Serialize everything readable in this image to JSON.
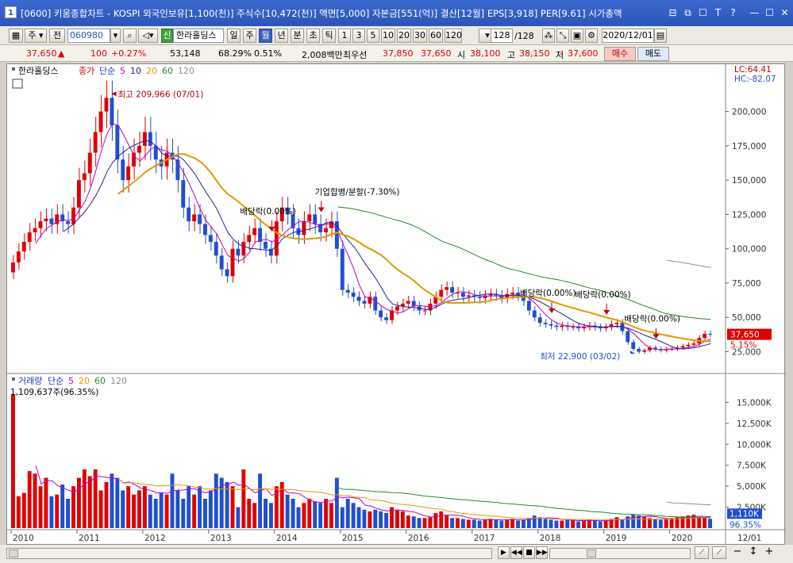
{
  "window": {
    "number": "1",
    "title": "[0600] 키움종합차트 - KOSPI 외국인보유[1,100(천)] 주식수[10,472(천)] 액면[5,000] 자본금[551(억)] 결산[12월] EPS[3,918] PER[9.61] 시가총액",
    "buttons": [
      "⊟",
      "⧉",
      "☐",
      "T",
      "?",
      "—",
      "☐",
      "✕"
    ]
  },
  "toolbar": {
    "item1": "주",
    "item2": "전",
    "code": "060980",
    "credit_badge": "신",
    "stock_name": "한라홀딩스",
    "periods": [
      "일",
      "주",
      "월",
      "년",
      "분",
      "초",
      "틱"
    ],
    "active_period": "월",
    "intervals": [
      "1",
      "3",
      "5",
      "10",
      "20",
      "30",
      "60",
      "120"
    ],
    "count": "128",
    "count_total": "/128",
    "date": "2020/12/01"
  },
  "pricebar": {
    "price": "37,650",
    "arrow": "▲",
    "change": "100",
    "change_pct": "+0.27%",
    "volume": "53,148",
    "vol_ratio": "68.29%",
    "turnover": "0.51%",
    "amount": "2,008백만",
    "bid_label": "최우선",
    "bid1": "37,850",
    "bid2": "37,650",
    "open_label": "시",
    "open": "38,100",
    "high_label": "고",
    "high": "38,150",
    "low_label": "저",
    "low": "37,600",
    "buy": "매수",
    "sell": "매도"
  },
  "price_panel": {
    "stock": "한라홀딩스",
    "legend": [
      {
        "label": "종가",
        "color": "#e00000"
      },
      {
        "label": "단순",
        "color": "#2040c0"
      },
      {
        "label": "5",
        "color": "#c000c0"
      },
      {
        "label": "10",
        "color": "#2020a0"
      },
      {
        "label": "20",
        "color": "#e09a00"
      },
      {
        "label": "60",
        "color": "#208a30"
      },
      {
        "label": "120",
        "color": "#909090"
      }
    ],
    "lc": "LC:64.41",
    "hc": "HC:-82.07",
    "max_label": "최고 209,966 (07/01)",
    "min_label": "최저 22,900 (03/02)",
    "current_price": "37,650",
    "current_pct": "5.15%",
    "yticks": [
      "200,000",
      "175,000",
      "150,000",
      "125,000",
      "100,000",
      "75,000",
      "50,000",
      "25,000"
    ],
    "annotations": [
      {
        "text": "배당락(0.00%)"
      },
      {
        "text": "기업합병/분할(-7.30%)"
      },
      {
        "text": "배당락(0.00%)"
      },
      {
        "text": "배당락(0.00%)"
      },
      {
        "text": "배당락(0.00%)"
      }
    ]
  },
  "volume_panel": {
    "legend": [
      {
        "label": "거래량",
        "color": "#2040c0"
      },
      {
        "label": "단순",
        "color": "#2040c0"
      },
      {
        "label": "5",
        "color": "#c000c0"
      },
      {
        "label": "20",
        "color": "#e09a00"
      },
      {
        "label": "60",
        "color": "#208a30"
      },
      {
        "label": "120",
        "color": "#909090"
      }
    ],
    "max_label": "1,109,637주(96.35%)",
    "current": "1,110K",
    "current_pct": "96.35%",
    "yticks": [
      "15,000K",
      "12,500K",
      "10,000K",
      "7,500K",
      "5,000K",
      "2,500K"
    ]
  },
  "xaxis": {
    "labels": [
      "2010",
      "2011",
      "2012",
      "2013",
      "2014",
      "2015",
      "2016",
      "2017",
      "2018",
      "2019",
      "2020",
      "12/01"
    ]
  },
  "chart_data": {
    "type": "candlestick",
    "interval": "monthly",
    "start": "2010-01",
    "price_ylim": [
      12000,
      220000
    ],
    "volume_ylim": [
      0,
      17500000
    ],
    "close": [
      90000,
      98000,
      105000,
      112000,
      115000,
      120000,
      122000,
      118000,
      125000,
      120000,
      118000,
      130000,
      150000,
      155000,
      170000,
      185000,
      200000,
      209966,
      190000,
      165000,
      150000,
      160000,
      170000,
      175000,
      185000,
      175000,
      165000,
      160000,
      170000,
      165000,
      150000,
      130000,
      120000,
      125000,
      118000,
      110000,
      105000,
      95000,
      85000,
      80000,
      100000,
      95000,
      105000,
      110000,
      115000,
      105000,
      100000,
      95000,
      120000,
      130000,
      125000,
      115000,
      110000,
      120000,
      125000,
      118000,
      112000,
      115000,
      120000,
      100000,
      70000,
      68000,
      65000,
      62000,
      60000,
      65000,
      55000,
      50000,
      48000,
      55000,
      58000,
      60000,
      62000,
      58000,
      55000,
      55000,
      60000,
      65000,
      70000,
      72000,
      68000,
      68000,
      65000,
      66000,
      65000,
      64000,
      66000,
      67000,
      66000,
      64000,
      67000,
      68000,
      66000,
      62000,
      55000,
      50000,
      46000,
      45000,
      44000,
      43000,
      44000,
      43000,
      43000,
      42000,
      43000,
      44000,
      43000,
      42000,
      43000,
      45000,
      46000,
      40000,
      32000,
      27000,
      25000,
      26000,
      28000,
      27000,
      26000,
      27000,
      27000,
      28000,
      29000,
      30000,
      31000,
      35000,
      38000,
      37650
    ],
    "volume": [
      16000000,
      3800000,
      4200000,
      6800000,
      6500000,
      5000000,
      6000000,
      3800000,
      4000000,
      5200000,
      3500000,
      5000000,
      6000000,
      7000000,
      6200000,
      7000000,
      4500000,
      5500000,
      6500000,
      6000000,
      4500000,
      5000000,
      4000000,
      4500000,
      5000000,
      4000000,
      3500000,
      4200000,
      4000000,
      6500000,
      4500000,
      3500000,
      5000000,
      4000000,
      5000000,
      3500000,
      4500000,
      6500000,
      6000000,
      5500000,
      5000000,
      2500000,
      7000000,
      3500000,
      3000000,
      6500000,
      3500000,
      3000000,
      5000000,
      5500000,
      4000000,
      3500000,
      2500000,
      3000000,
      3500000,
      3200000,
      3000000,
      3500000,
      3000000,
      6000000,
      2500000,
      3500000,
      3000000,
      2500000,
      2200000,
      2000000,
      2200000,
      2000000,
      1800000,
      2500000,
      2200000,
      2000000,
      1500000,
      1400000,
      1200000,
      1200000,
      1300000,
      1800000,
      2000000,
      1500000,
      1200000,
      1200000,
      1100000,
      1000000,
      1000000,
      900000,
      1000000,
      1100000,
      1000000,
      900000,
      1000000,
      1100000,
      900000,
      1000000,
      1200000,
      1500000,
      1300000,
      1100000,
      1000000,
      900000,
      900000,
      1000000,
      900000,
      800000,
      900000,
      1000000,
      900000,
      800000,
      900000,
      1100000,
      1300000,
      1000000,
      1400000,
      1600000,
      1500000,
      1400000,
      1200000,
      1100000,
      1000000,
      1100000,
      1200000,
      1300000,
      1400000,
      1500000,
      1600000,
      1300000,
      1200000,
      1110000
    ]
  }
}
